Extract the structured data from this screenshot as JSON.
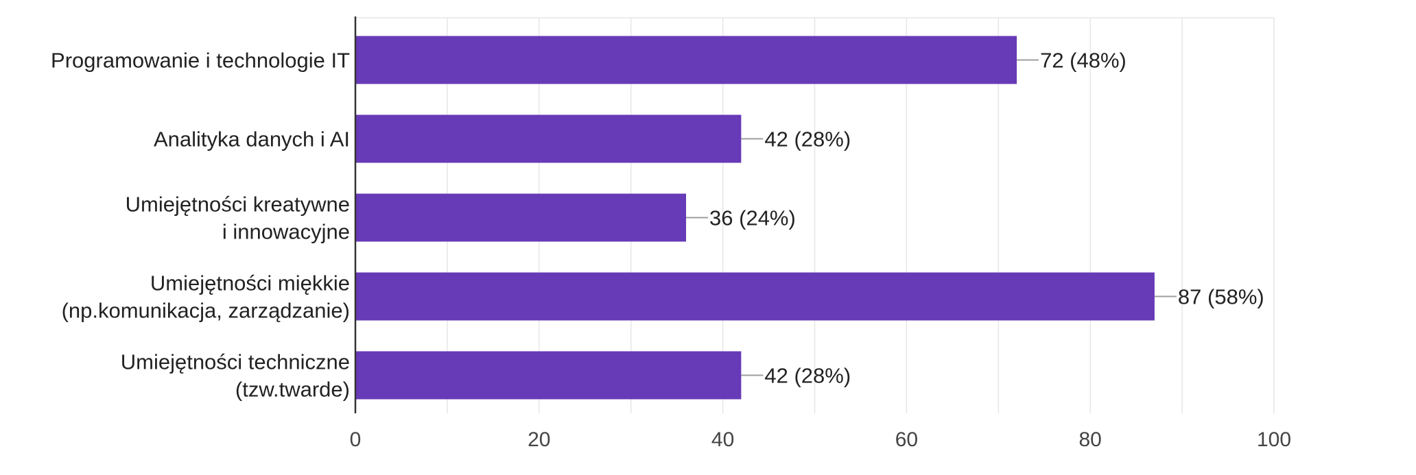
{
  "chart_data": {
    "type": "bar",
    "orientation": "horizontal",
    "categories": [
      [
        "Programowanie i technologie IT"
      ],
      [
        "Analityka danych i AI"
      ],
      [
        "Umiejętności kreatywne",
        "i innowacyjne"
      ],
      [
        "Umiejętności miękkie",
        "(np.komunikacja, zarządzanie)"
      ],
      [
        "Umiejętności techniczne",
        "(tzw.twarde)"
      ]
    ],
    "values": [
      72,
      42,
      36,
      87,
      42
    ],
    "value_labels": [
      "72 (48%)",
      "42 (28%)",
      "36 (24%)",
      "87 (58%)",
      "42 (28%)"
    ],
    "xlim": [
      0,
      100
    ],
    "xticks": [
      0,
      20,
      40,
      60,
      80,
      100
    ],
    "xtick_labels": [
      "0",
      "20",
      "40",
      "60",
      "80",
      "100"
    ],
    "grid": true,
    "colors": {
      "bar": "#673AB7",
      "grid": "#e6e6e6",
      "axis": "#333333",
      "leader": "#9e9e9e"
    }
  }
}
